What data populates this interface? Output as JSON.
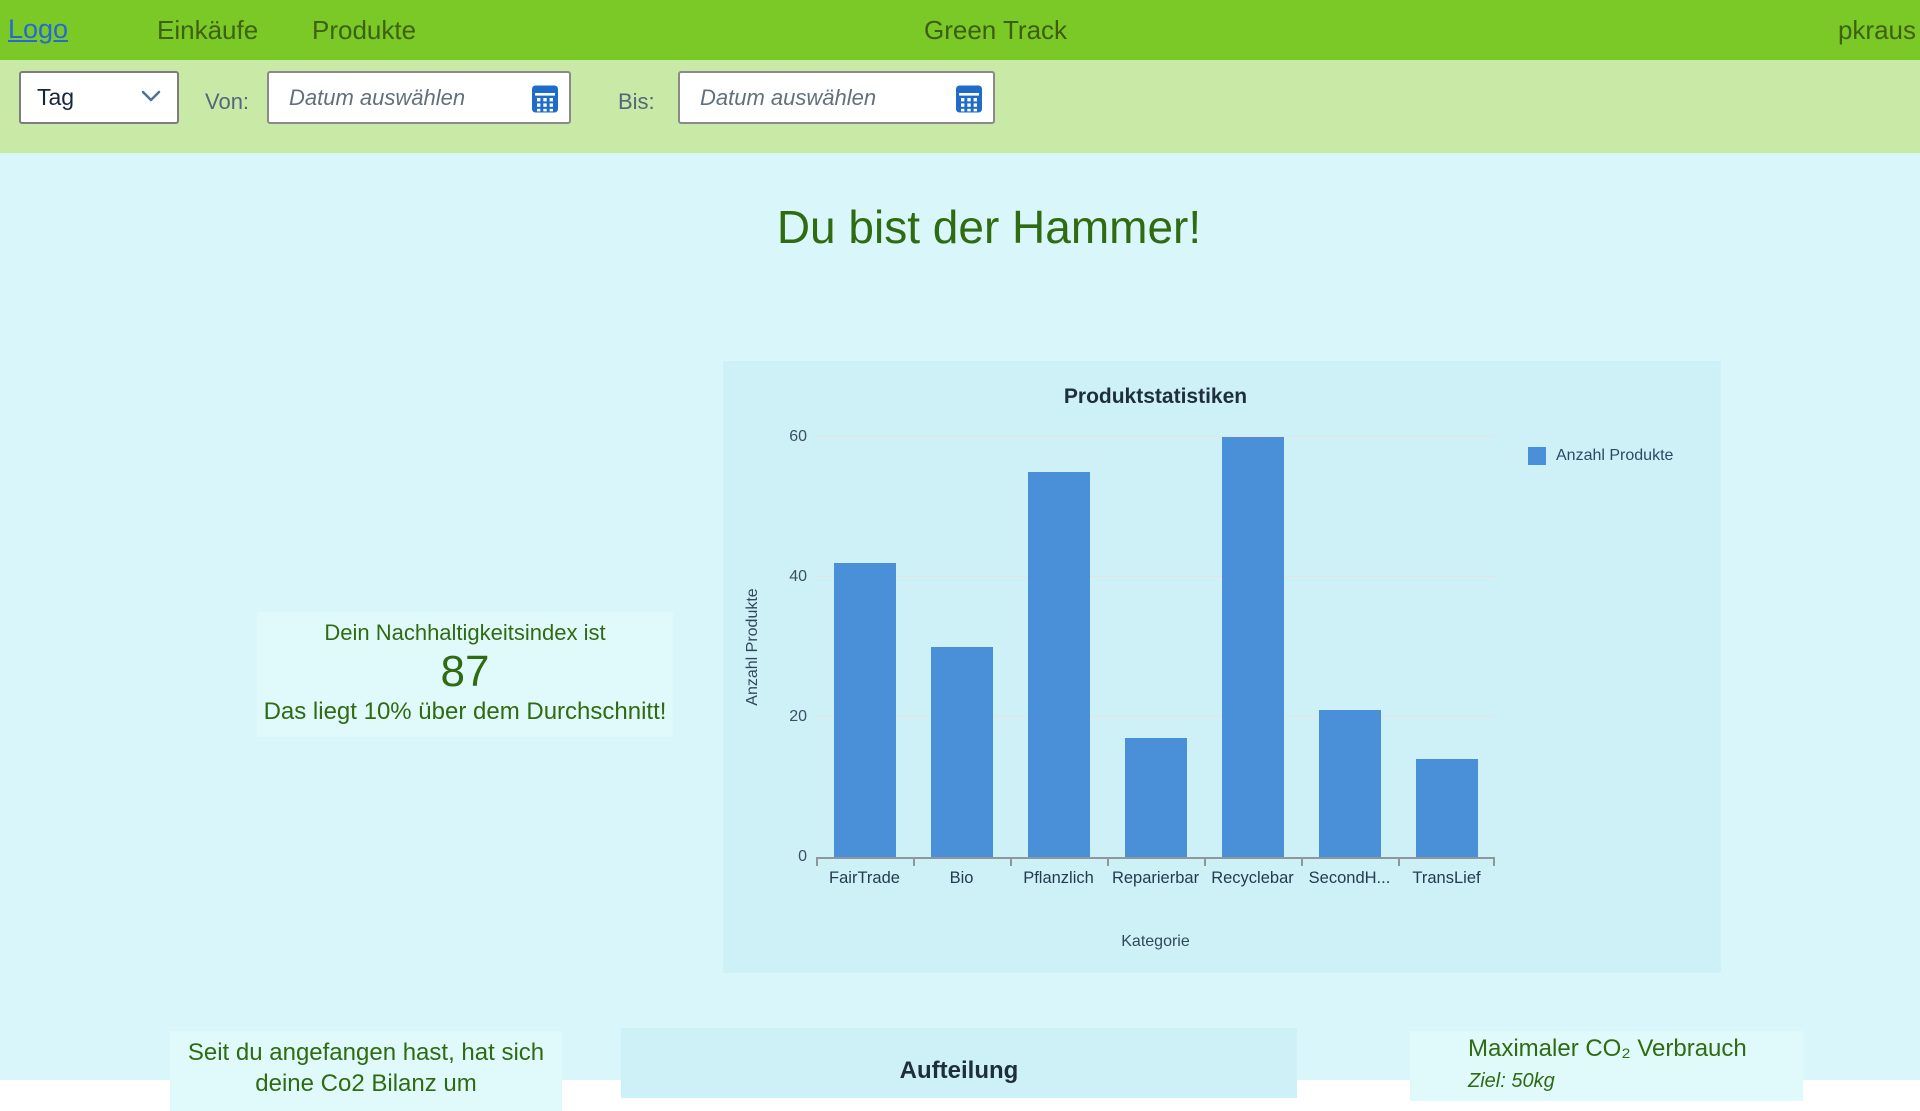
{
  "nav": {
    "logo": "Logo",
    "items": [
      {
        "label": "Einkäufe"
      },
      {
        "label": "Produkte"
      }
    ],
    "app_title": "Green Track",
    "user": "pkraus"
  },
  "filter_bar": {
    "period_select": {
      "value": "Tag"
    },
    "from_label": "Von:",
    "to_label": "Bis:",
    "date_placeholder": "Datum auswählen"
  },
  "main": {
    "headline": "Du bist der Hammer!",
    "index_card": {
      "intro": "Dein Nachhaltigkeitsindex ist",
      "value": "87",
      "comparison": "Das liegt 10% über dem Durchschnitt!"
    },
    "bottom": {
      "co2_balance_line1": "Seit du angefangen hast, hat sich",
      "co2_balance_line2": "deine Co2 Bilanz um",
      "aufteilung_title": "Aufteilung",
      "max_co2_title": "Maximaler CO₂ Verbrauch",
      "max_co2_goal": "Ziel: 50kg"
    }
  },
  "chart_data": {
    "type": "bar",
    "title": "Produktstatistiken",
    "categories": [
      "FairTrade",
      "Bio",
      "Pflanzlich",
      "Reparierbar",
      "Recyclebar",
      "SecondH...",
      "TransLief"
    ],
    "values": [
      42,
      30,
      55,
      17,
      60,
      21,
      14
    ],
    "series": [
      {
        "name": "Anzahl Produkte",
        "values": [
          42,
          30,
          55,
          17,
          60,
          21,
          14
        ]
      }
    ],
    "xlabel": "Kategorie",
    "ylabel": "Anzahl Produkte",
    "ylim": [
      0,
      60
    ],
    "yticks": [
      0,
      20,
      40,
      60
    ],
    "legend": [
      "Anzahl Produkte"
    ],
    "legend_position": "right",
    "grid": true,
    "bar_color": "#4a90d9"
  },
  "colors": {
    "nav_green": "#7bc926",
    "filter_green": "#c9e9a6",
    "page_cyan": "#d9f7fa",
    "panel_cyan": "#cdf1f7",
    "card_cyan": "#e0fafc",
    "text_green": "#2f6b10",
    "bar_blue": "#4a90d9",
    "link_blue": "#2569d6",
    "calendar_blue": "#1e6bc8"
  }
}
